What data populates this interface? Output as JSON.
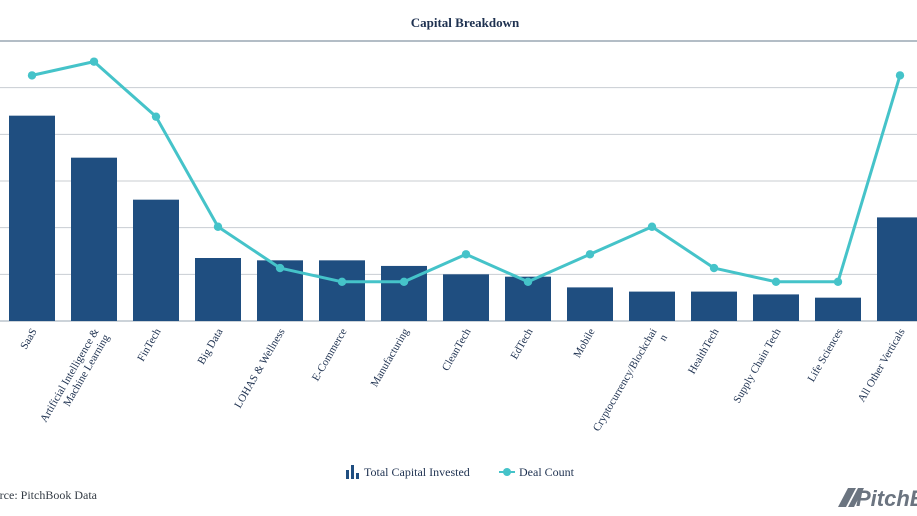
{
  "chart_data": {
    "type": "bar",
    "title": "Capital Breakdown",
    "categories": [
      "SaaS",
      [
        "Artificial Intelligence &",
        "Machine Learning"
      ],
      "FinTech",
      "Big Data",
      "LOHAS & Wellness",
      "E-Commerce",
      "Manufacturing",
      "CleanTech",
      "EdTech",
      "Mobile",
      [
        "Cryptocurrency/Blockchai",
        "n"
      ],
      "HealthTech",
      "Supply Chain Tech",
      "Life Sciences",
      "All Other Verticals"
    ],
    "series": [
      {
        "name": "Total Capital Invested",
        "type": "bar",
        "color": "#1f4e80",
        "values": [
          4.4,
          3.5,
          2.6,
          1.35,
          1.3,
          1.3,
          1.18,
          1.0,
          0.95,
          0.72,
          0.63,
          0.63,
          0.57,
          0.5,
          2.22
        ]
      },
      {
        "name": "Deal Count",
        "type": "line",
        "color": "#45c3c9",
        "values": [
          17.0,
          18.0,
          14.0,
          6.0,
          3.0,
          2.0,
          2.0,
          4.0,
          2.0,
          4.0,
          6.0,
          3.0,
          2.0,
          2.0,
          17.0
        ]
      }
    ],
    "y_left_range": [
      0,
      6
    ],
    "y_right_range": [
      -0.85,
      19.5
    ],
    "gridlines": true,
    "legend_position": "bottom-center"
  },
  "legend": {
    "bar_label": "Total Capital Invested",
    "line_label": "Deal Count"
  },
  "footer": {
    "source": "Source: PitchBook Data",
    "logo_text": "PitchBook"
  },
  "colors": {
    "bar": "#1f4e80",
    "line": "#45c3c9",
    "grid": "#c8cdd2",
    "axis": "#9aa7b3"
  }
}
